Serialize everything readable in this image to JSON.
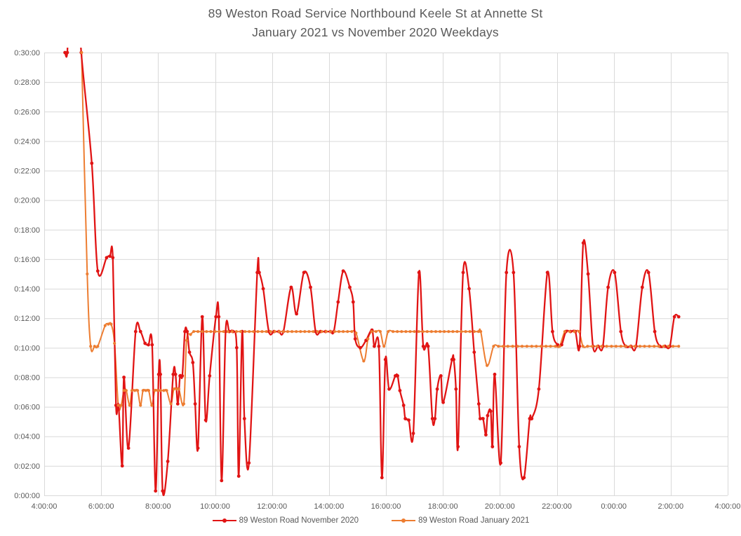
{
  "title": {
    "line1": "89 Weston Road Service Northbound Keele St at Annette St",
    "line2": "January 2021 vs November 2020 Weekdays"
  },
  "legend": [
    {
      "label": "89 Weston Road November 2020",
      "color": "#e11414"
    },
    {
      "label": "89 Weston Road January 2021",
      "color": "#ed7d31"
    }
  ],
  "chart_data": {
    "type": "line",
    "title": "89 Weston Road Service Northbound Keele St at Annette St January 2021 vs November 2020 Weekdays",
    "xlabel": "",
    "ylabel": "",
    "grid": true,
    "legend_position": "bottom",
    "x_axis": {
      "unit": "time of day (hours, 24h+)",
      "range_hours": [
        4,
        28
      ],
      "tick_step_hours": 2,
      "tick_labels": [
        "4:00:00",
        "6:00:00",
        "8:00:00",
        "10:00:00",
        "12:00:00",
        "14:00:00",
        "16:00:00",
        "18:00:00",
        "20:00:00",
        "22:00:00",
        "0:00:00",
        "2:00:00",
        "4:00:00"
      ]
    },
    "y_axis": {
      "unit": "headway (minutes)",
      "range_minutes": [
        0,
        30
      ],
      "tick_step_minutes": 2,
      "tick_labels": [
        "0:00:00",
        "0:02:00",
        "0:04:00",
        "0:06:00",
        "0:08:00",
        "0:10:00",
        "0:12:00",
        "0:14:00",
        "0:16:00",
        "0:18:00",
        "0:20:00",
        "0:22:00",
        "0:24:00",
        "0:26:00",
        "0:28:00",
        "0:30:00"
      ]
    },
    "colors": {
      "grid": "#d9d9d9",
      "axis_text": "#595959",
      "title_text": "#595959",
      "background": "#ffffff"
    },
    "series": [
      {
        "name": "89 Weston Road November 2020",
        "color": "#e11414",
        "line_width": 2.3,
        "marker_radius": 2.4,
        "points": [
          [
            4.73,
            30
          ],
          [
            4.81,
            30
          ],
          [
            4.9,
            34
          ],
          [
            5.2,
            34
          ],
          [
            5.3,
            30
          ],
          [
            5.67,
            22.5
          ],
          [
            5.88,
            15.2
          ],
          [
            6.19,
            16.1
          ],
          [
            6.31,
            16.2
          ],
          [
            6.41,
            16.1
          ],
          [
            6.52,
            6.1
          ],
          [
            6.61,
            6.1
          ],
          [
            6.74,
            2.0
          ],
          [
            6.8,
            8.0
          ],
          [
            6.96,
            3.2
          ],
          [
            7.21,
            11.1
          ],
          [
            7.38,
            11.1
          ],
          [
            7.54,
            10.3
          ],
          [
            7.66,
            10.2
          ],
          [
            7.79,
            10.2
          ],
          [
            7.91,
            0.3
          ],
          [
            8.02,
            8.2
          ],
          [
            8.08,
            8.2
          ],
          [
            8.16,
            0.3
          ],
          [
            8.34,
            2.3
          ],
          [
            8.53,
            8.2
          ],
          [
            8.61,
            8.2
          ],
          [
            8.69,
            6.2
          ],
          [
            8.77,
            8.1
          ],
          [
            8.85,
            8.1
          ],
          [
            8.94,
            11.1
          ],
          [
            9.02,
            11.1
          ],
          [
            9.1,
            9.7
          ],
          [
            9.22,
            9.0
          ],
          [
            9.3,
            6.2
          ],
          [
            9.4,
            3.2
          ],
          [
            9.55,
            12.1
          ],
          [
            9.67,
            5.1
          ],
          [
            9.81,
            8.1
          ],
          [
            10.03,
            12.1
          ],
          [
            10.13,
            12.1
          ],
          [
            10.23,
            1.0
          ],
          [
            10.37,
            11.1
          ],
          [
            10.5,
            11.1
          ],
          [
            10.63,
            11.1
          ],
          [
            10.76,
            10.0
          ],
          [
            10.83,
            1.3
          ],
          [
            10.95,
            11.1
          ],
          [
            11.03,
            5.2
          ],
          [
            11.19,
            2.2
          ],
          [
            11.48,
            15.1
          ],
          [
            11.55,
            15.1
          ],
          [
            11.69,
            14.0
          ],
          [
            11.89,
            11.1
          ],
          [
            12.07,
            11.1
          ],
          [
            12.24,
            11.1
          ],
          [
            12.4,
            11.1
          ],
          [
            12.67,
            14.1
          ],
          [
            12.86,
            12.3
          ],
          [
            13.12,
            15.1
          ],
          [
            13.35,
            14.1
          ],
          [
            13.53,
            11.1
          ],
          [
            13.7,
            11.1
          ],
          [
            13.88,
            11.1
          ],
          [
            14.05,
            11.1
          ],
          [
            14.17,
            11.1
          ],
          [
            14.32,
            13.1
          ],
          [
            14.5,
            15.2
          ],
          [
            14.73,
            14.1
          ],
          [
            14.85,
            13.1
          ],
          [
            14.92,
            10.6
          ],
          [
            15.1,
            10.0
          ],
          [
            15.3,
            10.5
          ],
          [
            15.51,
            11.2
          ],
          [
            15.59,
            10.1
          ],
          [
            15.75,
            10.1
          ],
          [
            15.86,
            1.2
          ],
          [
            15.98,
            9.2
          ],
          [
            16.11,
            7.2
          ],
          [
            16.33,
            8.1
          ],
          [
            16.41,
            8.1
          ],
          [
            16.49,
            7.1
          ],
          [
            16.62,
            6.1
          ],
          [
            16.68,
            5.2
          ],
          [
            16.8,
            5.1
          ],
          [
            16.96,
            4.2
          ],
          [
            17.16,
            15.1
          ],
          [
            17.31,
            10.1
          ],
          [
            17.48,
            10.1
          ],
          [
            17.63,
            5.2
          ],
          [
            17.72,
            5.2
          ],
          [
            17.8,
            7.2
          ],
          [
            17.93,
            8.1
          ],
          [
            18.01,
            6.3
          ],
          [
            18.32,
            9.2
          ],
          [
            18.38,
            9.2
          ],
          [
            18.46,
            7.2
          ],
          [
            18.53,
            3.3
          ],
          [
            18.71,
            15.1
          ],
          [
            18.92,
            14.0
          ],
          [
            19.1,
            9.7
          ],
          [
            19.26,
            6.2
          ],
          [
            19.31,
            5.2
          ],
          [
            19.41,
            5.2
          ],
          [
            19.51,
            4.1
          ],
          [
            19.57,
            5.4
          ],
          [
            19.68,
            5.7
          ],
          [
            19.74,
            3.3
          ],
          [
            19.82,
            8.2
          ],
          [
            20.03,
            2.2
          ],
          [
            20.23,
            15.1
          ],
          [
            20.48,
            15.1
          ],
          [
            20.68,
            3.3
          ],
          [
            20.85,
            1.2
          ],
          [
            21.05,
            5.2
          ],
          [
            21.12,
            5.2
          ],
          [
            21.37,
            7.2
          ],
          [
            21.67,
            15.1
          ],
          [
            21.85,
            11.1
          ],
          [
            22.03,
            10.2
          ],
          [
            22.17,
            10.2
          ],
          [
            22.32,
            11.1
          ],
          [
            22.48,
            11.1
          ],
          [
            22.65,
            11.1
          ],
          [
            22.8,
            10.1
          ],
          [
            22.93,
            17.1
          ],
          [
            23.1,
            15.0
          ],
          [
            23.27,
            10.1
          ],
          [
            23.45,
            10.1
          ],
          [
            23.62,
            10.1
          ],
          [
            23.8,
            14.1
          ],
          [
            24.03,
            15.1
          ],
          [
            24.25,
            11.1
          ],
          [
            24.42,
            10.1
          ],
          [
            24.6,
            10.1
          ],
          [
            24.78,
            10.1
          ],
          [
            25.0,
            14.1
          ],
          [
            25.22,
            15.1
          ],
          [
            25.44,
            11.1
          ],
          [
            25.62,
            10.1
          ],
          [
            25.8,
            10.1
          ],
          [
            25.97,
            10.1
          ],
          [
            26.13,
            12.1
          ],
          [
            26.28,
            12.1
          ]
        ]
      },
      {
        "name": "89 Weston Road January 2021",
        "color": "#ed7d31",
        "line_width": 2.0,
        "marker_radius": 2.1,
        "points": [
          [
            5.31,
            30
          ],
          [
            5.51,
            15.0
          ],
          [
            5.63,
            10.1
          ],
          [
            5.77,
            10.1
          ],
          [
            5.88,
            10.1
          ],
          [
            6.14,
            11.5
          ],
          [
            6.25,
            11.6
          ],
          [
            6.35,
            11.6
          ],
          [
            6.47,
            10.3
          ],
          [
            6.6,
            6.1
          ],
          [
            6.7,
            6.1
          ],
          [
            6.8,
            7.1
          ],
          [
            6.88,
            7.1
          ],
          [
            7.0,
            6.1
          ],
          [
            7.08,
            7.1
          ],
          [
            7.18,
            7.1
          ],
          [
            7.28,
            7.1
          ],
          [
            7.38,
            6.1
          ],
          [
            7.47,
            7.1
          ],
          [
            7.57,
            7.1
          ],
          [
            7.67,
            7.1
          ],
          [
            7.78,
            6.1
          ],
          [
            7.88,
            7.1
          ],
          [
            7.98,
            7.1
          ],
          [
            8.08,
            7.1
          ],
          [
            8.2,
            7.1
          ],
          [
            8.3,
            7.1
          ],
          [
            8.45,
            6.2
          ],
          [
            8.55,
            7.2
          ],
          [
            8.65,
            7.2
          ],
          [
            8.73,
            7.2
          ],
          [
            8.9,
            6.2
          ],
          [
            9.0,
            10.5
          ],
          [
            9.14,
            10.9
          ],
          [
            9.25,
            11.1
          ],
          [
            9.4,
            11.1
          ],
          [
            9.55,
            11.1
          ],
          [
            9.7,
            11.1
          ],
          [
            9.85,
            11.1
          ],
          [
            10.0,
            11.1
          ],
          [
            10.15,
            11.1
          ],
          [
            10.3,
            11.1
          ],
          [
            10.45,
            11.1
          ],
          [
            10.6,
            11.1
          ],
          [
            10.75,
            11.1
          ],
          [
            10.9,
            11.1
          ],
          [
            11.05,
            11.1
          ],
          [
            11.2,
            11.1
          ],
          [
            11.35,
            11.1
          ],
          [
            11.5,
            11.1
          ],
          [
            11.65,
            11.1
          ],
          [
            11.8,
            11.1
          ],
          [
            11.95,
            11.1
          ],
          [
            12.1,
            11.1
          ],
          [
            12.25,
            11.1
          ],
          [
            12.4,
            11.1
          ],
          [
            12.55,
            11.1
          ],
          [
            12.7,
            11.1
          ],
          [
            12.85,
            11.1
          ],
          [
            13.0,
            11.1
          ],
          [
            13.15,
            11.1
          ],
          [
            13.3,
            11.1
          ],
          [
            13.45,
            11.1
          ],
          [
            13.6,
            11.1
          ],
          [
            13.75,
            11.1
          ],
          [
            13.9,
            11.1
          ],
          [
            14.05,
            11.1
          ],
          [
            14.2,
            11.1
          ],
          [
            14.35,
            11.1
          ],
          [
            14.5,
            11.1
          ],
          [
            14.65,
            11.1
          ],
          [
            14.8,
            11.1
          ],
          [
            14.95,
            11.0
          ],
          [
            15.22,
            9.1
          ],
          [
            15.37,
            10.6
          ],
          [
            15.5,
            11.1
          ],
          [
            15.65,
            11.1
          ],
          [
            15.8,
            11.1
          ],
          [
            15.93,
            10.1
          ],
          [
            16.08,
            11.1
          ],
          [
            16.25,
            11.1
          ],
          [
            16.4,
            11.1
          ],
          [
            16.55,
            11.1
          ],
          [
            16.7,
            11.1
          ],
          [
            16.85,
            11.1
          ],
          [
            17.0,
            11.1
          ],
          [
            17.15,
            11.1
          ],
          [
            17.3,
            11.1
          ],
          [
            17.45,
            11.1
          ],
          [
            17.6,
            11.1
          ],
          [
            17.75,
            11.1
          ],
          [
            17.9,
            11.1
          ],
          [
            18.05,
            11.1
          ],
          [
            18.2,
            11.1
          ],
          [
            18.35,
            11.1
          ],
          [
            18.5,
            11.1
          ],
          [
            18.65,
            11.1
          ],
          [
            18.8,
            11.1
          ],
          [
            18.95,
            11.1
          ],
          [
            19.1,
            11.1
          ],
          [
            19.25,
            11.1
          ],
          [
            19.33,
            11.1
          ],
          [
            19.55,
            8.8
          ],
          [
            19.78,
            10.1
          ],
          [
            19.95,
            10.1
          ],
          [
            20.12,
            10.1
          ],
          [
            20.28,
            10.1
          ],
          [
            20.45,
            10.1
          ],
          [
            20.62,
            10.1
          ],
          [
            20.78,
            10.1
          ],
          [
            20.95,
            10.1
          ],
          [
            21.12,
            10.1
          ],
          [
            21.28,
            10.1
          ],
          [
            21.45,
            10.1
          ],
          [
            21.62,
            10.1
          ],
          [
            21.78,
            10.1
          ],
          [
            21.95,
            10.1
          ],
          [
            22.1,
            10.1
          ],
          [
            22.28,
            11.1
          ],
          [
            22.45,
            11.1
          ],
          [
            22.62,
            11.1
          ],
          [
            22.78,
            11.1
          ],
          [
            22.92,
            10.1
          ],
          [
            23.08,
            10.1
          ],
          [
            23.25,
            10.1
          ],
          [
            23.42,
            10.1
          ],
          [
            23.58,
            10.1
          ],
          [
            23.75,
            10.1
          ],
          [
            23.92,
            10.1
          ],
          [
            24.08,
            10.1
          ],
          [
            24.25,
            10.1
          ],
          [
            24.42,
            10.1
          ],
          [
            24.58,
            10.1
          ],
          [
            24.75,
            10.1
          ],
          [
            24.92,
            10.1
          ],
          [
            25.08,
            10.1
          ],
          [
            25.25,
            10.1
          ],
          [
            25.42,
            10.1
          ],
          [
            25.58,
            10.1
          ],
          [
            25.75,
            10.1
          ],
          [
            25.92,
            10.1
          ],
          [
            26.08,
            10.1
          ],
          [
            26.28,
            10.1
          ]
        ]
      }
    ]
  }
}
